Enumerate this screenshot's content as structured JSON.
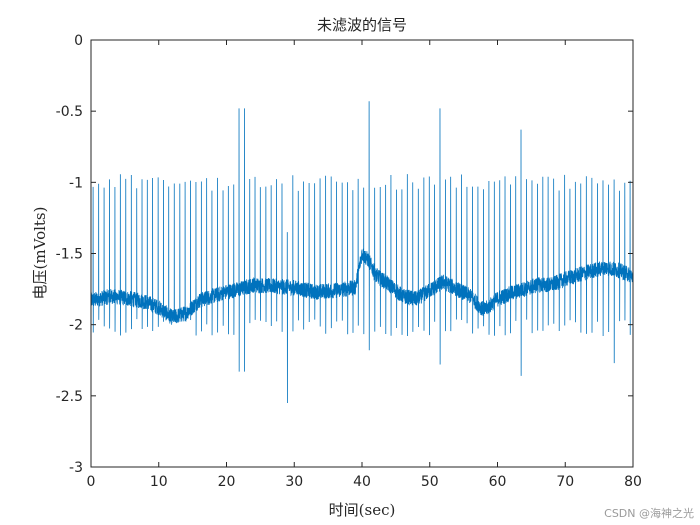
{
  "chart_data": {
    "type": "line",
    "title": "未滤波的信号",
    "xlabel": "时间(sec)",
    "ylabel": "电压(mVolts)",
    "xlim": [
      0,
      80
    ],
    "ylim": [
      -3,
      0
    ],
    "x_ticks": [
      0,
      10,
      20,
      30,
      40,
      50,
      60,
      70,
      80
    ],
    "x_tick_labels": [
      "0",
      "10",
      "20",
      "30",
      "40",
      "50",
      "60",
      "70",
      "80"
    ],
    "y_ticks": [
      0,
      -0.5,
      -1,
      -1.5,
      -2,
      -2.5,
      -3
    ],
    "y_tick_labels": [
      "0",
      "-0.5",
      "-1",
      "-1.5",
      "-2",
      "-2.5",
      "-3"
    ],
    "grid": false,
    "series": [
      {
        "color": "#0072BD",
        "baseline_points": [
          [
            0,
            -1.83
          ],
          [
            3,
            -1.8
          ],
          [
            6,
            -1.82
          ],
          [
            8,
            -1.84
          ],
          [
            10,
            -1.88
          ],
          [
            12,
            -1.95
          ],
          [
            14,
            -1.92
          ],
          [
            16,
            -1.83
          ],
          [
            18,
            -1.8
          ],
          [
            20,
            -1.77
          ],
          [
            22,
            -1.75
          ],
          [
            24,
            -1.72
          ],
          [
            27,
            -1.73
          ],
          [
            30,
            -1.74
          ],
          [
            33,
            -1.77
          ],
          [
            36,
            -1.76
          ],
          [
            39,
            -1.74
          ],
          [
            40,
            -1.5
          ],
          [
            41,
            -1.55
          ],
          [
            42,
            -1.65
          ],
          [
            44,
            -1.72
          ],
          [
            46,
            -1.8
          ],
          [
            48,
            -1.82
          ],
          [
            50,
            -1.76
          ],
          [
            52,
            -1.7
          ],
          [
            54,
            -1.75
          ],
          [
            56,
            -1.8
          ],
          [
            58,
            -1.9
          ],
          [
            60,
            -1.82
          ],
          [
            62,
            -1.78
          ],
          [
            64,
            -1.75
          ],
          [
            66,
            -1.72
          ],
          [
            68,
            -1.72
          ],
          [
            70,
            -1.68
          ],
          [
            72,
            -1.65
          ],
          [
            74,
            -1.62
          ],
          [
            76,
            -1.6
          ],
          [
            78,
            -1.62
          ],
          [
            80,
            -1.66
          ]
        ],
        "beat_interval_sec": 0.8,
        "typical_beat_peak": -1.0,
        "typical_beat_trough": -2.02,
        "large_spikes": [
          {
            "x": 22.2,
            "peak": -0.48,
            "trough": -2.33
          },
          {
            "x": 29.2,
            "peak": -1.35,
            "trough": -2.55
          },
          {
            "x": 41.3,
            "peak": -0.43,
            "trough": -2.18
          },
          {
            "x": 51.3,
            "peak": -0.48,
            "trough": -2.28
          },
          {
            "x": 63.2,
            "peak": -0.63,
            "trough": -2.36
          },
          {
            "x": 77.1,
            "peak": -0.98,
            "trough": -2.27
          }
        ]
      }
    ]
  },
  "watermark": "CSDN @海神之光"
}
